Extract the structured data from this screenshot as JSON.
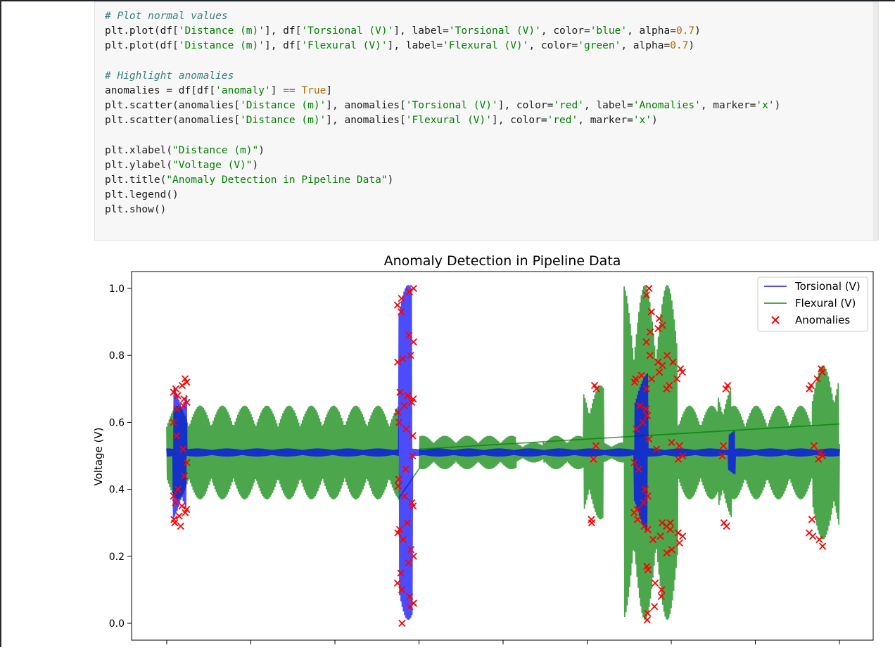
{
  "code_cell": {
    "lines": [
      [
        {
          "t": "# Plot normal values",
          "c": "com"
        }
      ],
      [
        {
          "t": "plt.plot(df[",
          "c": ""
        },
        {
          "t": "'Distance (m)'",
          "c": "str"
        },
        {
          "t": "], df[",
          "c": ""
        },
        {
          "t": "'Torsional (V)'",
          "c": "str"
        },
        {
          "t": "], label=",
          "c": ""
        },
        {
          "t": "'Torsional (V)'",
          "c": "str"
        },
        {
          "t": ", color=",
          "c": ""
        },
        {
          "t": "'blue'",
          "c": "str"
        },
        {
          "t": ", alpha=",
          "c": ""
        },
        {
          "t": "0.7",
          "c": "num"
        },
        {
          "t": ")",
          "c": ""
        }
      ],
      [
        {
          "t": "plt.plot(df[",
          "c": ""
        },
        {
          "t": "'Distance (m)'",
          "c": "str"
        },
        {
          "t": "], df[",
          "c": ""
        },
        {
          "t": "'Flexural (V)'",
          "c": "str"
        },
        {
          "t": "], label=",
          "c": ""
        },
        {
          "t": "'Flexural (V)'",
          "c": "str"
        },
        {
          "t": ", color=",
          "c": ""
        },
        {
          "t": "'green'",
          "c": "str"
        },
        {
          "t": ", alpha=",
          "c": ""
        },
        {
          "t": "0.7",
          "c": "num"
        },
        {
          "t": ")",
          "c": ""
        }
      ],
      [],
      [
        {
          "t": "# Highlight anomalies",
          "c": "com"
        }
      ],
      [
        {
          "t": "anomalies = df[df[",
          "c": ""
        },
        {
          "t": "'anomaly'",
          "c": "str"
        },
        {
          "t": "] ",
          "c": ""
        },
        {
          "t": "==",
          "c": "op"
        },
        {
          "t": " ",
          "c": ""
        },
        {
          "t": "True",
          "c": "kw"
        },
        {
          "t": "]",
          "c": ""
        }
      ],
      [
        {
          "t": "plt.scatter(anomalies[",
          "c": ""
        },
        {
          "t": "'Distance (m)'",
          "c": "str"
        },
        {
          "t": "], anomalies[",
          "c": ""
        },
        {
          "t": "'Torsional (V)'",
          "c": "str"
        },
        {
          "t": "], color=",
          "c": ""
        },
        {
          "t": "'red'",
          "c": "str"
        },
        {
          "t": ", label=",
          "c": ""
        },
        {
          "t": "'Anomalies'",
          "c": "str"
        },
        {
          "t": ", marker=",
          "c": ""
        },
        {
          "t": "'x'",
          "c": "str"
        },
        {
          "t": ")",
          "c": ""
        }
      ],
      [
        {
          "t": "plt.scatter(anomalies[",
          "c": ""
        },
        {
          "t": "'Distance (m)'",
          "c": "str"
        },
        {
          "t": "], anomalies[",
          "c": ""
        },
        {
          "t": "'Flexural (V)'",
          "c": "str"
        },
        {
          "t": "], color=",
          "c": ""
        },
        {
          "t": "'red'",
          "c": "str"
        },
        {
          "t": ", marker=",
          "c": ""
        },
        {
          "t": "'x'",
          "c": "str"
        },
        {
          "t": ")",
          "c": ""
        }
      ],
      [],
      [
        {
          "t": "plt.xlabel(",
          "c": ""
        },
        {
          "t": "\"Distance (m)\"",
          "c": "str"
        },
        {
          "t": ")",
          "c": ""
        }
      ],
      [
        {
          "t": "plt.ylabel(",
          "c": ""
        },
        {
          "t": "\"Voltage (V)\"",
          "c": "str"
        },
        {
          "t": ")",
          "c": ""
        }
      ],
      [
        {
          "t": "plt.title(",
          "c": ""
        },
        {
          "t": "\"Anomaly Detection in Pipeline Data\"",
          "c": "str"
        },
        {
          "t": ")",
          "c": ""
        }
      ],
      [
        {
          "t": "plt.legend()",
          "c": ""
        }
      ],
      [
        {
          "t": "plt.show()",
          "c": ""
        }
      ]
    ]
  },
  "chart_data": {
    "type": "line",
    "title": "Anomaly Detection in Pipeline Data",
    "xlabel": "",
    "ylabel": "Voltage (V)",
    "ylim": [
      0.0,
      1.0
    ],
    "yticks": [
      "0.0",
      "0.2",
      "0.4",
      "0.6",
      "0.8",
      "1.0"
    ],
    "x_tick_count": 9,
    "legend_position": "top-right",
    "series": [
      {
        "name": "Torsional (V)",
        "color": "#0000ff",
        "alpha": 0.7,
        "kind": "line"
      },
      {
        "name": "Flexural (V)",
        "color": "#008000",
        "alpha": 0.7,
        "kind": "line"
      },
      {
        "name": "Anomalies",
        "color": "#ff0000",
        "kind": "scatter",
        "marker": "x"
      }
    ],
    "torsional_bursts": [
      {
        "x0": 0.01,
        "x1": 0.03,
        "amplitude": 0.22
      },
      {
        "x0": 0.345,
        "x1": 0.365,
        "amplitude": 0.5
      },
      {
        "x0": 0.695,
        "x1": 0.715,
        "amplitude": 0.24
      },
      {
        "x0": 0.835,
        "x1": 0.845,
        "amplitude": 0.07
      }
    ],
    "flexural_segments": [
      {
        "x0": 0.0,
        "x1": 0.345,
        "amplitude": 0.14
      },
      {
        "x0": 0.375,
        "x1": 0.52,
        "amplitude": 0.05
      },
      {
        "x0": 0.52,
        "x1": 0.56,
        "amplitude": 0.03
      },
      {
        "x0": 0.56,
        "x1": 0.62,
        "amplitude": 0.05
      },
      {
        "x0": 0.62,
        "x1": 0.65,
        "amplitude": 0.2
      },
      {
        "x0": 0.68,
        "x1": 0.76,
        "amplitude": 0.5
      },
      {
        "x0": 0.76,
        "x1": 0.82,
        "amplitude": 0.14
      },
      {
        "x0": 0.82,
        "x1": 0.84,
        "amplitude": 0.2
      },
      {
        "x0": 0.84,
        "x1": 0.96,
        "amplitude": 0.14
      },
      {
        "x0": 0.96,
        "x1": 1.0,
        "amplitude": 0.26
      }
    ],
    "baseline": 0.51,
    "trend_line": {
      "x0": 0.375,
      "y0": 0.52,
      "x1": 1.0,
      "y1": 0.595
    },
    "anomaly_clusters": [
      {
        "x": 0.02,
        "spread": 0.01,
        "ys": [
          0.73,
          0.72,
          0.71,
          0.7,
          0.69,
          0.68,
          0.67,
          0.66,
          0.65,
          0.64,
          0.6,
          0.56,
          0.52,
          0.48,
          0.44,
          0.4,
          0.38,
          0.36,
          0.35,
          0.34,
          0.33,
          0.32,
          0.31,
          0.3,
          0.29
        ]
      },
      {
        "x": 0.355,
        "spread": 0.012,
        "ys": [
          1.0,
          0.99,
          0.97,
          0.95,
          0.93,
          0.86,
          0.84,
          0.8,
          0.79,
          0.78,
          0.69,
          0.68,
          0.67,
          0.66,
          0.65,
          0.63,
          0.6,
          0.58,
          0.56,
          0.5,
          0.46,
          0.43,
          0.41,
          0.38,
          0.36,
          0.35,
          0.3,
          0.28,
          0.27,
          0.25,
          0.22,
          0.2,
          0.18,
          0.15,
          0.12,
          0.1,
          0.08,
          0.06,
          0.05,
          0.0
        ]
      },
      {
        "x": 0.635,
        "spread": 0.004,
        "ys": [
          0.71,
          0.7,
          0.53,
          0.49,
          0.31,
          0.3
        ]
      },
      {
        "x": 0.705,
        "spread": 0.01,
        "ys": [
          0.74,
          0.73,
          0.72,
          0.65,
          0.64,
          0.62,
          0.6,
          0.58,
          0.48,
          0.46,
          0.4,
          0.38,
          0.36,
          0.34,
          0.33,
          0.31,
          0.29,
          0.28
        ]
      },
      {
        "x": 0.725,
        "spread": 0.012,
        "ys": [
          1.0,
          0.98,
          0.93,
          0.91,
          0.89,
          0.88,
          0.87,
          0.84,
          0.8,
          0.78,
          0.77,
          0.75,
          0.73,
          0.7,
          0.55,
          0.52,
          0.3,
          0.26,
          0.25,
          0.17,
          0.16,
          0.12,
          0.1,
          0.08,
          0.05,
          0.03,
          0.01
        ]
      },
      {
        "x": 0.755,
        "spread": 0.012,
        "ys": [
          0.8,
          0.78,
          0.76,
          0.75,
          0.73,
          0.71,
          0.7,
          0.54,
          0.53,
          0.5,
          0.49,
          0.3,
          0.29,
          0.28,
          0.27,
          0.26,
          0.24,
          0.22,
          0.21
        ]
      },
      {
        "x": 0.83,
        "spread": 0.004,
        "ys": [
          0.71,
          0.7,
          0.53,
          0.5,
          0.3,
          0.29
        ]
      },
      {
        "x": 0.965,
        "spread": 0.01,
        "ys": [
          0.76,
          0.75,
          0.73,
          0.71,
          0.7,
          0.53,
          0.51,
          0.5,
          0.49,
          0.31,
          0.27,
          0.26,
          0.25,
          0.23
        ]
      }
    ]
  }
}
